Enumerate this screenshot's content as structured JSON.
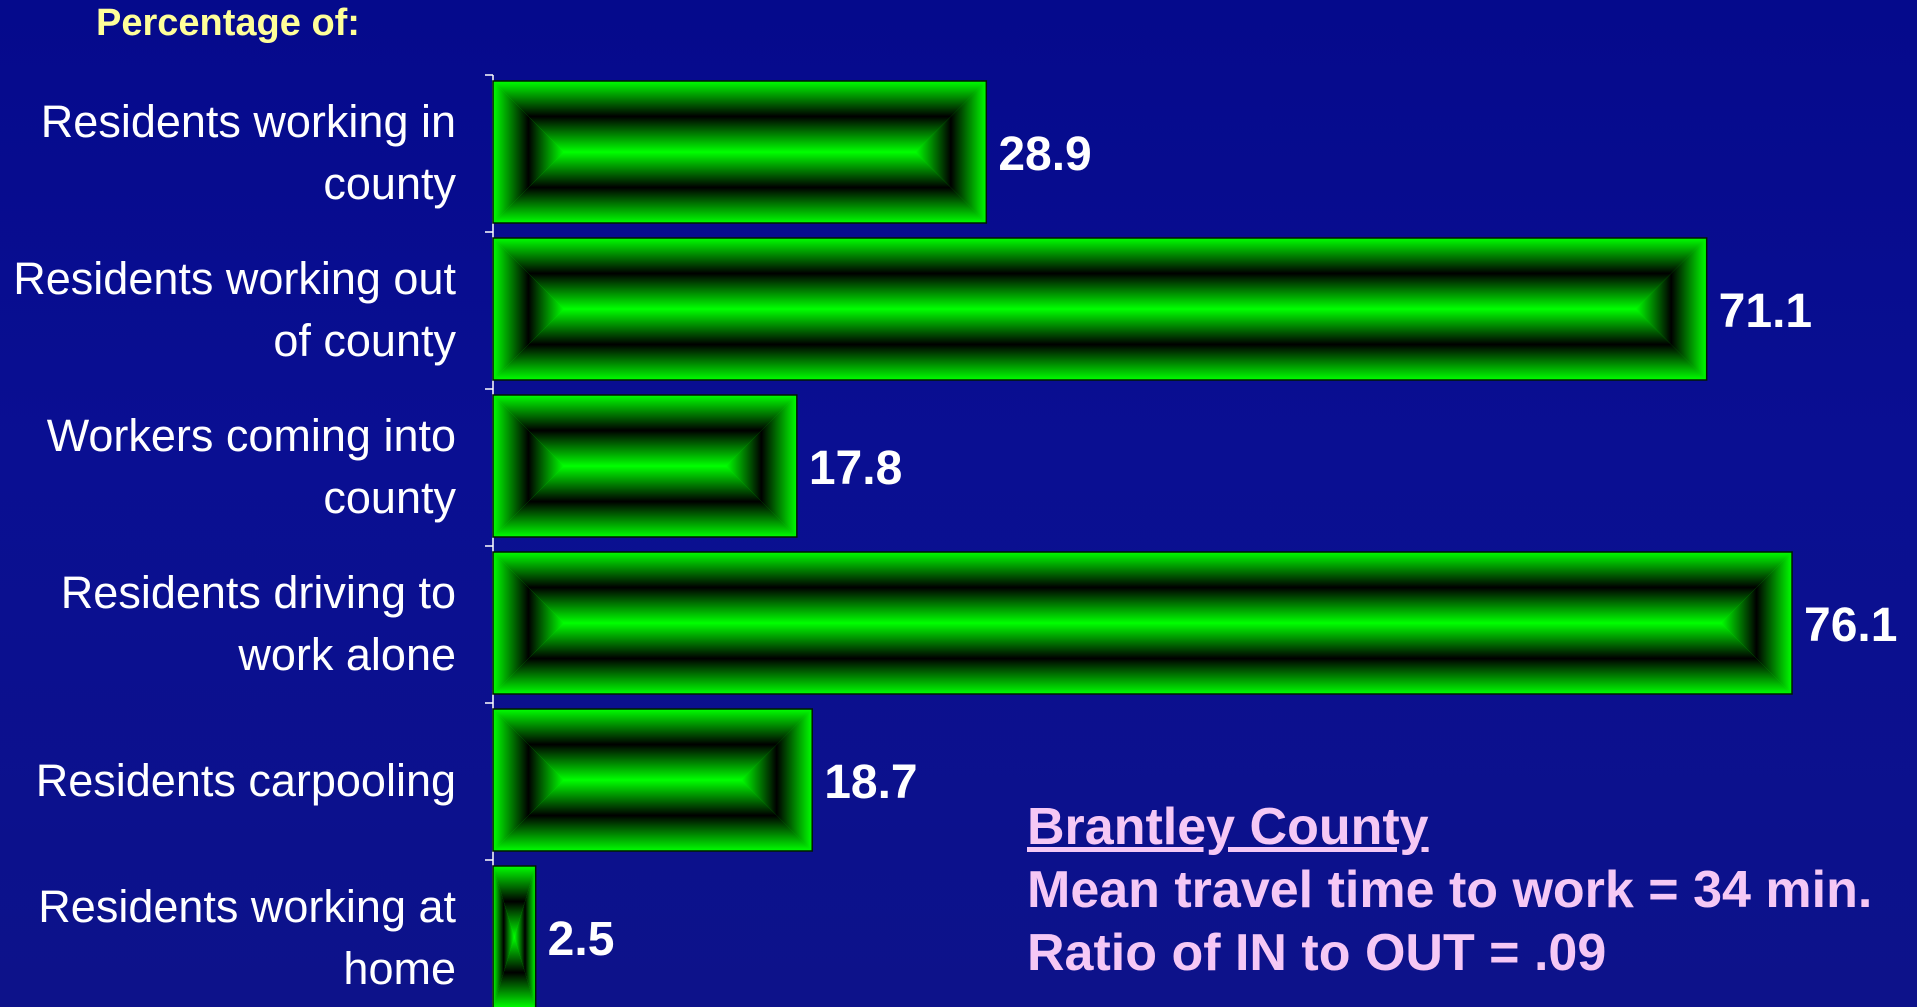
{
  "heading": "Percentage of:",
  "info": {
    "county": "Brantley County",
    "mean_travel": "Mean travel time to work = 34 min.",
    "ratio": "Ratio of IN to OUT = .09"
  },
  "colors": {
    "background": "#050a8c",
    "bar": "#00ff00",
    "bar_center": "#000000",
    "heading": "#ffff99",
    "info": "#f5c8f5",
    "text": "#ffffff"
  },
  "chart_data": {
    "type": "bar",
    "orientation": "horizontal",
    "title": "Percentage of:",
    "categories": [
      [
        "Residents working in",
        "county"
      ],
      [
        "Residents working out",
        "of county"
      ],
      [
        "Workers coming into",
        "county"
      ],
      [
        "Residents driving to",
        "work alone"
      ],
      [
        "Residents carpooling"
      ],
      [
        "Residents working at",
        "home"
      ]
    ],
    "values": [
      28.9,
      71.1,
      17.8,
      76.1,
      18.7,
      2.5
    ],
    "value_labels": [
      "28.9",
      "71.1",
      "17.8",
      "76.1",
      "18.7",
      "2.5"
    ],
    "xlim": [
      0,
      100
    ],
    "grid": false,
    "legend": "none"
  }
}
